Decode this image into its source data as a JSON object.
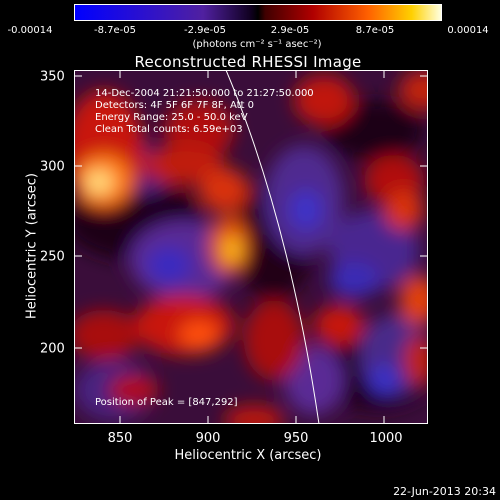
{
  "colorbar": {
    "ticks": [
      "-0.00014",
      "-8.7e-05",
      "-2.9e-05",
      "2.9e-05",
      "8.7e-05",
      "0.00014"
    ],
    "units": "(photons cm⁻² s⁻¹ asec⁻²)"
  },
  "title": "Reconstructed RHESSI Image",
  "annotations": {
    "time": "14-Dec-2004 21:21:50.000 to 21:27:50.000",
    "detectors": "Detectors: 4F 5F 6F 7F 8F, Att 0",
    "energy": "Energy Range: 25.0 - 50.0 keV",
    "clean": "Clean    Total counts: 6.59e+03",
    "peak": "Position of Peak = [847,292]"
  },
  "axes": {
    "xlabel": "Heliocentric X (arcsec)",
    "ylabel": "Heliocentric Y (arcsec)",
    "xticks": [
      "850",
      "900",
      "950",
      "1000"
    ],
    "yticks": [
      "350",
      "300",
      "250",
      "200"
    ]
  },
  "timestamp": "22-Jun-2013 20:34"
}
